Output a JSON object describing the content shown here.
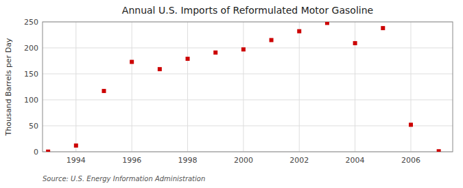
{
  "chart_data": {
    "type": "scatter",
    "title": "Annual U.S. Imports of Reformulated Motor Gasoline",
    "ylabel": "Thousand Barrels per Day",
    "source": "Source: U.S. Energy Information Administration",
    "x": [
      1993,
      1994,
      1995,
      1996,
      1997,
      1998,
      1999,
      2000,
      2001,
      2002,
      2003,
      2004,
      2005,
      2006,
      2007
    ],
    "values": [
      0.3,
      12,
      117,
      173,
      159,
      179,
      191,
      197,
      215,
      232,
      248,
      209,
      238,
      52,
      1
    ],
    "color": "#cc0000",
    "marker": "square",
    "xlim": [
      1992.8,
      2007.5
    ],
    "ylim": [
      0,
      250
    ],
    "xticks": [
      1994,
      1996,
      1998,
      2000,
      2002,
      2004,
      2006
    ],
    "yticks": [
      0,
      50,
      100,
      150,
      200,
      250
    ],
    "grid": true
  }
}
